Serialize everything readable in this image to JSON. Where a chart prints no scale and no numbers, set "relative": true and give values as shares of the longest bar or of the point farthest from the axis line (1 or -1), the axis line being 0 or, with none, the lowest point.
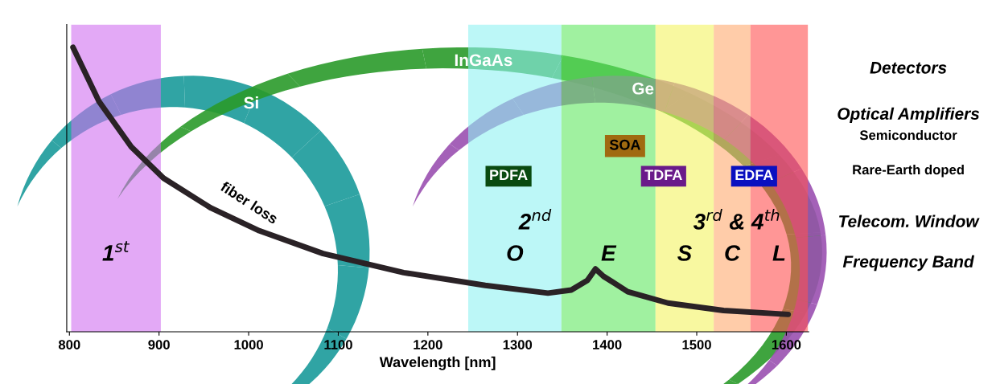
{
  "chart_data": {
    "type": "line",
    "relative": true,
    "xlabel": "Wavelength [nm]",
    "xlim": [
      797,
      1625
    ],
    "xticks": [
      800,
      900,
      1000,
      1100,
      1200,
      1300,
      1400,
      1500,
      1600
    ],
    "tick_labels": "x",
    "grid": false,
    "marker": "none",
    "line_style": "solid",
    "series": [
      {
        "name": null,
        "color": "#2a2226",
        "x": [
          804,
          833,
          869,
          905,
          958,
          1012,
          1083,
          1173,
          1264,
          1334,
          1360,
          1378,
          1387,
          1396,
          1423,
          1468,
          1530,
          1602
        ],
        "values": [
          1.0,
          0.81,
          0.65,
          0.54,
          0.435,
          0.355,
          0.275,
          0.208,
          0.163,
          0.136,
          0.147,
          0.181,
          0.221,
          0.195,
          0.141,
          0.101,
          0.075,
          0.061
        ]
      }
    ],
    "bands": [
      {
        "axis": "x",
        "from": 802,
        "to": 902,
        "label": "1$^{st}$",
        "color": "#d070f0"
      },
      {
        "axis": "x",
        "from": 1245,
        "to": 1349,
        "label": "O",
        "color": "#90f2f2"
      },
      {
        "axis": "x",
        "from": 1349,
        "to": 1454,
        "label": "E",
        "color": "#60e860"
      },
      {
        "axis": "x",
        "from": 1454,
        "to": 1519,
        "label": "S",
        "color": "#f4f460"
      },
      {
        "axis": "x",
        "from": 1519,
        "to": 1560,
        "label": "C",
        "color": "#ffaa70"
      },
      {
        "axis": "x",
        "from": 1560,
        "to": 1624,
        "label": "L",
        "color": "#ff5050"
      }
    ],
    "annotations": [
      "fiber loss",
      "2$^{nd}$",
      "3$^{rd}$ & 4$^{th}$",
      "SOA",
      "PDFA",
      "TDFA",
      "EDFA",
      "Si",
      "InGaAs",
      "Ge",
      "Detectors",
      "Optical Amplifiers",
      "Semiconductor",
      "Rare-Earth doped",
      "Telecom. Window",
      "Frequency Band"
    ]
  }
}
